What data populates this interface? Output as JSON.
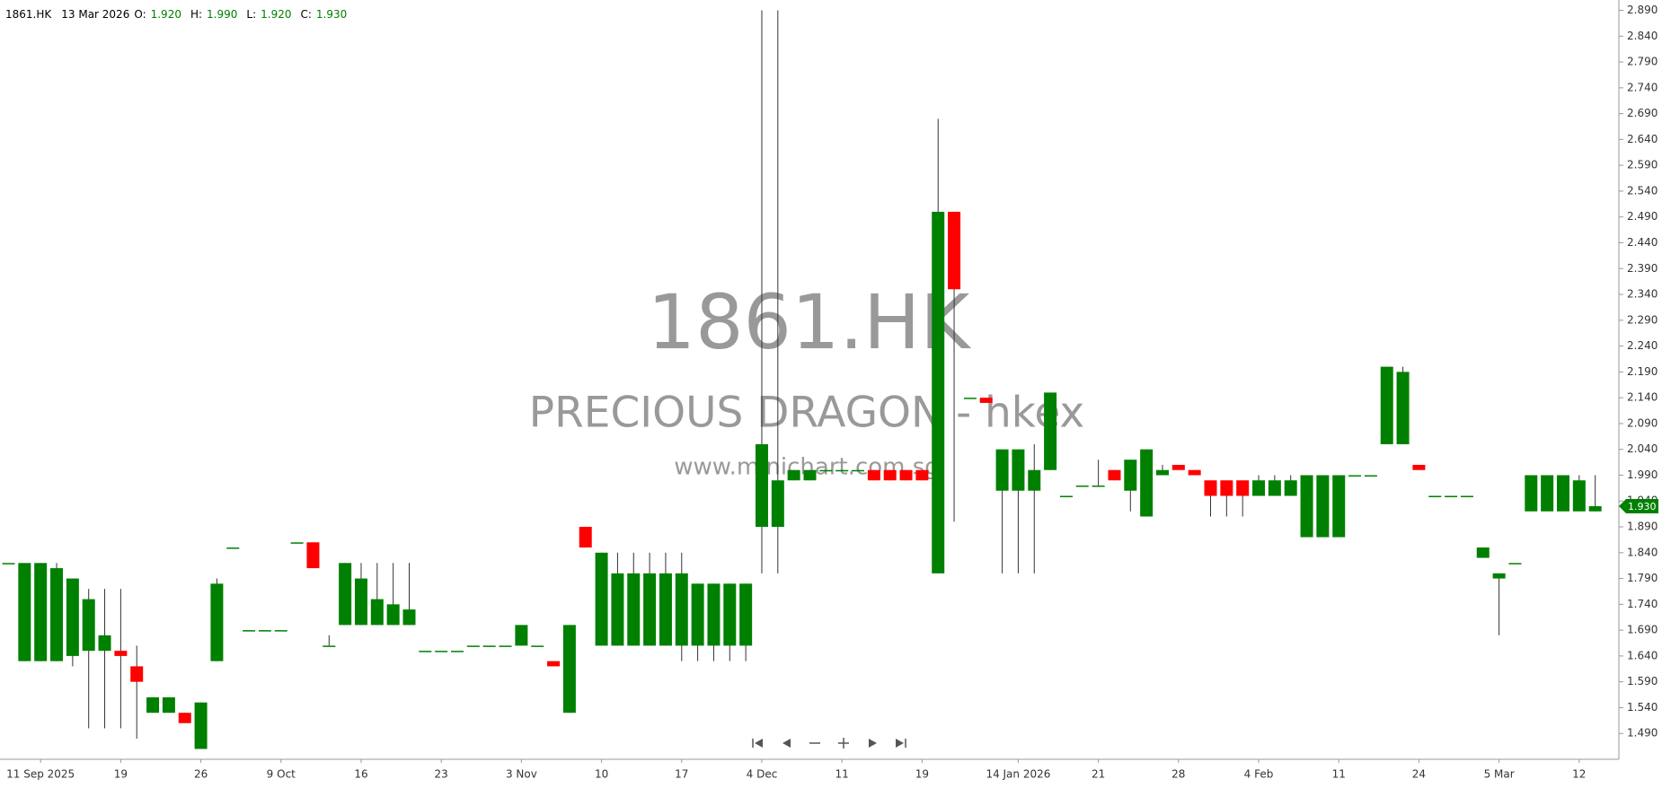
{
  "chart_data": {
    "type": "candlestick",
    "header": {
      "symbol": "1861.HK",
      "date": "13 Mar 2026",
      "fields": [
        {
          "label": "O:",
          "value": "1.920"
        },
        {
          "label": "H:",
          "value": "1.990"
        },
        {
          "label": "L:",
          "value": "1.920"
        },
        {
          "label": "C:",
          "value": "1.930"
        }
      ]
    },
    "watermark": {
      "symbol": "1861.HK",
      "name": "PRECIOUS DRAGON - hkex",
      "site": "www.minichart.com.sg"
    },
    "last_price": {
      "value": 1.93,
      "label": "1.930"
    },
    "up_color": "#008000",
    "down_color": "#ff0000",
    "categories": [
      null,
      null,
      "11 Sep 2025",
      null,
      null,
      null,
      null,
      "19",
      null,
      null,
      null,
      null,
      "26",
      null,
      null,
      null,
      null,
      "9 Oct",
      null,
      null,
      null,
      null,
      "16",
      null,
      null,
      null,
      null,
      "23",
      null,
      null,
      null,
      null,
      "3 Nov",
      null,
      null,
      null,
      null,
      "10",
      null,
      null,
      null,
      null,
      "17",
      null,
      null,
      null,
      null,
      "4 Dec",
      null,
      null,
      null,
      null,
      "11",
      null,
      null,
      null,
      null,
      "19",
      null,
      null,
      null,
      null,
      null,
      "14 Jan 2026",
      null,
      null,
      null,
      null,
      "21",
      null,
      null,
      null,
      null,
      "28",
      null,
      null,
      null,
      null,
      "4 Feb",
      null,
      null,
      null,
      null,
      "11",
      null,
      null,
      null,
      null,
      "24",
      null,
      null,
      null,
      null,
      "5 Mar",
      null,
      null,
      null,
      null,
      "12",
      null
    ],
    "open": [
      1.82,
      1.63,
      1.63,
      1.63,
      1.64,
      1.65,
      1.65,
      1.65,
      1.62,
      1.53,
      1.53,
      1.53,
      1.46,
      1.63,
      1.85,
      1.69,
      1.69,
      1.69,
      1.86,
      1.86,
      1.66,
      1.7,
      1.7,
      1.7,
      1.7,
      1.7,
      1.65,
      1.65,
      1.65,
      1.66,
      1.66,
      1.66,
      1.66,
      1.66,
      1.63,
      1.53,
      1.89,
      1.66,
      1.66,
      1.66,
      1.66,
      1.66,
      1.66,
      1.66,
      1.66,
      1.66,
      1.66,
      1.89,
      1.89,
      1.98,
      1.98,
      2.0,
      2.0,
      2.0,
      2.0,
      2.0,
      2.0,
      2.0,
      1.8,
      2.5,
      2.14,
      2.14,
      1.96,
      1.96,
      1.96,
      2.0,
      1.95,
      1.97,
      1.97,
      2.0,
      1.96,
      1.91,
      1.99,
      2.01,
      2.0,
      1.98,
      1.98,
      1.98,
      1.95,
      1.95,
      1.95,
      1.87,
      1.87,
      1.87,
      1.99,
      1.99,
      2.05,
      2.05,
      2.01,
      1.95,
      1.95,
      1.95,
      1.83,
      1.79,
      1.82,
      1.92,
      1.92,
      1.92,
      1.92,
      1.92
    ],
    "high": [
      1.82,
      1.82,
      1.82,
      1.82,
      1.79,
      1.77,
      1.77,
      1.77,
      1.66,
      1.56,
      1.56,
      1.53,
      1.55,
      1.79,
      1.85,
      1.69,
      1.69,
      1.69,
      1.86,
      1.86,
      1.68,
      1.82,
      1.82,
      1.82,
      1.82,
      1.82,
      1.65,
      1.65,
      1.65,
      1.66,
      1.66,
      1.66,
      1.7,
      1.66,
      1.63,
      1.7,
      1.89,
      1.84,
      1.84,
      1.84,
      1.84,
      1.84,
      1.84,
      1.78,
      1.78,
      1.78,
      1.78,
      2.89,
      2.89,
      2.0,
      2.0,
      2.0,
      2.0,
      2.0,
      2.0,
      2.0,
      2.0,
      2.0,
      2.68,
      2.5,
      2.14,
      2.14,
      2.04,
      2.04,
      2.05,
      2.15,
      1.95,
      1.97,
      2.02,
      2.0,
      2.02,
      2.04,
      2.01,
      2.01,
      2.0,
      1.98,
      1.98,
      1.98,
      1.99,
      1.99,
      1.99,
      1.99,
      1.99,
      1.99,
      1.99,
      1.99,
      2.2,
      2.2,
      2.01,
      1.95,
      1.95,
      1.95,
      1.85,
      1.8,
      1.82,
      1.99,
      1.99,
      1.99,
      1.99,
      1.99
    ],
    "low": [
      1.82,
      1.63,
      1.63,
      1.63,
      1.62,
      1.5,
      1.5,
      1.5,
      1.48,
      1.53,
      1.53,
      1.51,
      1.46,
      1.63,
      1.85,
      1.69,
      1.69,
      1.69,
      1.86,
      1.81,
      1.66,
      1.7,
      1.7,
      1.7,
      1.7,
      1.7,
      1.65,
      1.65,
      1.65,
      1.66,
      1.66,
      1.66,
      1.66,
      1.66,
      1.62,
      1.53,
      1.85,
      1.66,
      1.66,
      1.66,
      1.66,
      1.66,
      1.63,
      1.63,
      1.63,
      1.63,
      1.63,
      1.8,
      1.8,
      1.98,
      1.98,
      2.0,
      2.0,
      2.0,
      1.98,
      1.98,
      1.98,
      1.98,
      1.8,
      1.9,
      2.14,
      2.13,
      1.8,
      1.8,
      1.8,
      2.0,
      1.95,
      1.97,
      1.97,
      1.98,
      1.92,
      1.91,
      1.99,
      2.0,
      1.99,
      1.91,
      1.91,
      1.91,
      1.95,
      1.95,
      1.95,
      1.87,
      1.87,
      1.87,
      1.99,
      1.99,
      2.05,
      2.05,
      2.0,
      1.95,
      1.95,
      1.95,
      1.83,
      1.68,
      1.82,
      1.92,
      1.92,
      1.92,
      1.92,
      1.92
    ],
    "close": [
      1.82,
      1.82,
      1.82,
      1.81,
      1.79,
      1.75,
      1.68,
      1.64,
      1.59,
      1.56,
      1.56,
      1.51,
      1.55,
      1.78,
      1.85,
      1.69,
      1.69,
      1.69,
      1.86,
      1.81,
      1.66,
      1.82,
      1.79,
      1.75,
      1.74,
      1.73,
      1.65,
      1.65,
      1.65,
      1.66,
      1.66,
      1.66,
      1.7,
      1.66,
      1.62,
      1.7,
      1.85,
      1.84,
      1.8,
      1.8,
      1.8,
      1.8,
      1.8,
      1.78,
      1.78,
      1.78,
      1.78,
      2.05,
      1.98,
      2.0,
      2.0,
      2.0,
      2.0,
      2.0,
      1.98,
      1.98,
      1.98,
      1.98,
      2.5,
      2.35,
      2.14,
      2.13,
      2.04,
      2.04,
      2.0,
      2.15,
      1.95,
      1.97,
      1.97,
      1.98,
      2.02,
      2.04,
      2.0,
      2.0,
      1.99,
      1.95,
      1.95,
      1.95,
      1.98,
      1.98,
      1.98,
      1.99,
      1.99,
      1.99,
      1.99,
      1.99,
      2.2,
      2.19,
      2.0,
      1.95,
      1.95,
      1.95,
      1.85,
      1.8,
      1.82,
      1.99,
      1.99,
      1.99,
      1.98,
      1.93
    ],
    "ylim": [
      1.44,
      2.91
    ],
    "yticks": [
      {
        "value": 2.89,
        "label": "2.890"
      },
      {
        "value": 2.84,
        "label": "2.840"
      },
      {
        "value": 2.79,
        "label": "2.790"
      },
      {
        "value": 2.74,
        "label": "2.740"
      },
      {
        "value": 2.69,
        "label": "2.690"
      },
      {
        "value": 2.64,
        "label": "2.640"
      },
      {
        "value": 2.59,
        "label": "2.590"
      },
      {
        "value": 2.54,
        "label": "2.540"
      },
      {
        "value": 2.49,
        "label": "2.490"
      },
      {
        "value": 2.44,
        "label": "2.440"
      },
      {
        "value": 2.39,
        "label": "2.390"
      },
      {
        "value": 2.34,
        "label": "2.340"
      },
      {
        "value": 2.29,
        "label": "2.290"
      },
      {
        "value": 2.24,
        "label": "2.240"
      },
      {
        "value": 2.19,
        "label": "2.190"
      },
      {
        "value": 2.14,
        "label": "2.140"
      },
      {
        "value": 2.09,
        "label": "2.090"
      },
      {
        "value": 2.04,
        "label": "2.040"
      },
      {
        "value": 1.99,
        "label": "1.990"
      },
      {
        "value": 1.94,
        "label": "1.940"
      },
      {
        "value": 1.89,
        "label": "1.890"
      },
      {
        "value": 1.84,
        "label": "1.840"
      },
      {
        "value": 1.79,
        "label": "1.790"
      },
      {
        "value": 1.74,
        "label": "1.740"
      },
      {
        "value": 1.69,
        "label": "1.690"
      },
      {
        "value": 1.64,
        "label": "1.640"
      },
      {
        "value": 1.59,
        "label": "1.590"
      },
      {
        "value": 1.54,
        "label": "1.540"
      },
      {
        "value": 1.49,
        "label": "1.490"
      }
    ]
  }
}
